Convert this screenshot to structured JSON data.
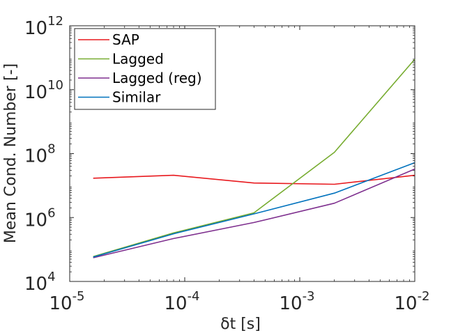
{
  "chart_data": {
    "type": "line",
    "title": "",
    "xlabel": "δt [s]",
    "ylabel": "Mean Cond. Number [-]",
    "x_scale": "log",
    "y_scale": "log",
    "xlim": [
      1e-05,
      0.01
    ],
    "ylim": [
      10000.0,
      1000000000000.0
    ],
    "x_ticks": [
      {
        "value": 1e-05,
        "base": "10",
        "exp": "-5"
      },
      {
        "value": 0.0001,
        "base": "10",
        "exp": "-4"
      },
      {
        "value": 0.001,
        "base": "10",
        "exp": "-3"
      },
      {
        "value": 0.01,
        "base": "10",
        "exp": "-2"
      }
    ],
    "y_ticks": [
      {
        "value": 10000.0,
        "base": "10",
        "exp": "4"
      },
      {
        "value": 1000000.0,
        "base": "10",
        "exp": "6"
      },
      {
        "value": 100000000.0,
        "base": "10",
        "exp": "8"
      },
      {
        "value": 10000000000.0,
        "base": "10",
        "exp": "10"
      },
      {
        "value": 1000000000000.0,
        "base": "10",
        "exp": "12"
      }
    ],
    "grid": false,
    "legend_position": "top-left",
    "x": [
      1.6e-05,
      8e-05,
      0.0004,
      0.002,
      0.01
    ],
    "series": [
      {
        "name": "SAP",
        "color": "#e8191e",
        "values": [
          17000000.0,
          21000000.0,
          12000000.0,
          11000000.0,
          21000000.0
        ]
      },
      {
        "name": "Lagged",
        "color": "#77ac30",
        "values": [
          60000.0,
          330000.0,
          1400000.0,
          110000000.0,
          90000000000.0
        ]
      },
      {
        "name": "Lagged (reg)",
        "color": "#7e2f8e",
        "values": [
          55000.0,
          220000.0,
          700000.0,
          2800000.0,
          33000000.0
        ]
      },
      {
        "name": "Similar",
        "color": "#0072bd",
        "values": [
          58000.0,
          310000.0,
          1300000.0,
          5800000.0,
          52000000.0
        ]
      }
    ]
  }
}
